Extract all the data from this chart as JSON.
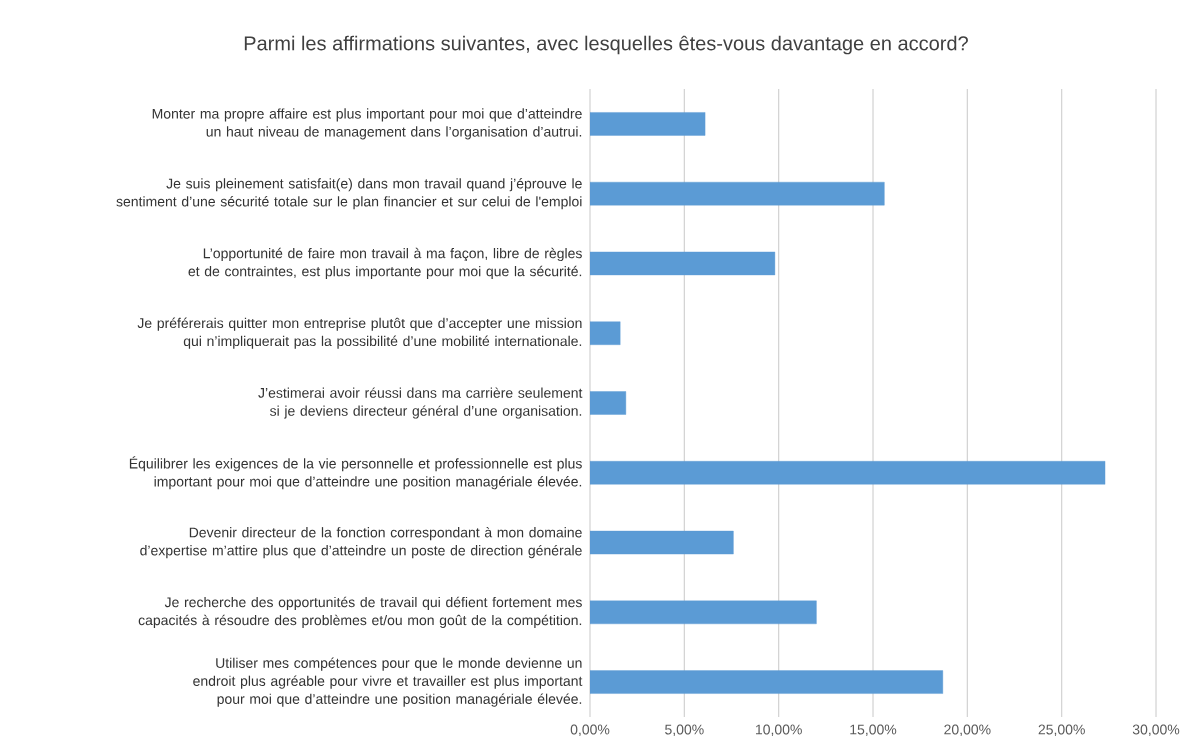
{
  "chart_data": {
    "type": "bar",
    "orientation": "horizontal",
    "title": "Parmi les affirmations suivantes, avec lesquelles êtes-vous davantage en accord?",
    "categories": [
      "Monter ma propre affaire est plus important pour moi que d’atteindre un haut niveau de management  dans l’organisation d’autrui.",
      "Je suis pleinement satisfait(e) dans mon travail quand j’éprouve le sentiment d’une sécurité totale sur le plan financier et sur celui de l'emploi",
      "L’opportunité de faire mon travail à ma façon, libre de règles et de contraintes, est plus importante pour moi que la sécurité.",
      "Je préférerais quitter mon entreprise plutôt que d’accepter une mission qui n’impliquerait pas la possibilité d’une mobilité internationale.",
      "J’estimerai avoir réussi dans ma carrière seulement si je deviens directeur général d’une organisation.",
      "Équilibrer les exigences de la vie personnelle et professionnelle est plus important pour moi que d’atteindre une position managériale élevée.",
      "Devenir directeur de la fonction correspondant à mon domaine d’expertise m’attire plus que d’atteindre un poste de direction générale",
      "Je recherche des opportunités de travail qui défient fortement mes capacités à résoudre des problèmes et/ou mon goût de la compétition.",
      "Utiliser mes compétences pour que le monde devienne un endroit plus agréable  pour vivre et travailler est plus important pour moi que d’atteindre une position managériale élevée."
    ],
    "values": [
      6.1,
      15.6,
      9.8,
      1.6,
      1.9,
      27.3,
      7.6,
      12.0,
      18.7
    ],
    "color": "#5b9bd5",
    "xlim": [
      0,
      30
    ],
    "xticks": [
      {
        "value": 0,
        "label": "0,00%"
      },
      {
        "value": 5,
        "label": "5,00%"
      },
      {
        "value": 10,
        "label": "10,00%"
      },
      {
        "value": 15,
        "label": "15,00%"
      },
      {
        "value": 20,
        "label": "20,00%"
      },
      {
        "value": 25,
        "label": "25,00%"
      },
      {
        "value": 30,
        "label": "30,00%"
      }
    ],
    "grid": "x"
  }
}
